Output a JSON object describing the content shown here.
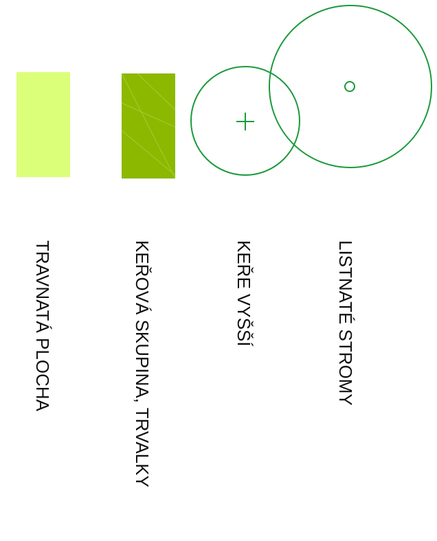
{
  "legend": {
    "items": [
      {
        "id": "grass",
        "label": "TRAVNATÁ PLOCHA",
        "symbol": "rectangle",
        "color": "#dcff7a"
      },
      {
        "id": "shrub-group",
        "label": "KEŘOVÁ SKUPINA, TRVALKY",
        "symbol": "rectangle",
        "color": "#8cb800"
      },
      {
        "id": "shrubs-tall",
        "label": "KEŘE VYŠŠÍ",
        "symbol": "circle-cross",
        "color": "#1a9a3a"
      },
      {
        "id": "deciduous-trees",
        "label": "LISTNATÉ STROMY",
        "symbol": "circle-dot",
        "color": "#1a9a3a"
      }
    ]
  }
}
